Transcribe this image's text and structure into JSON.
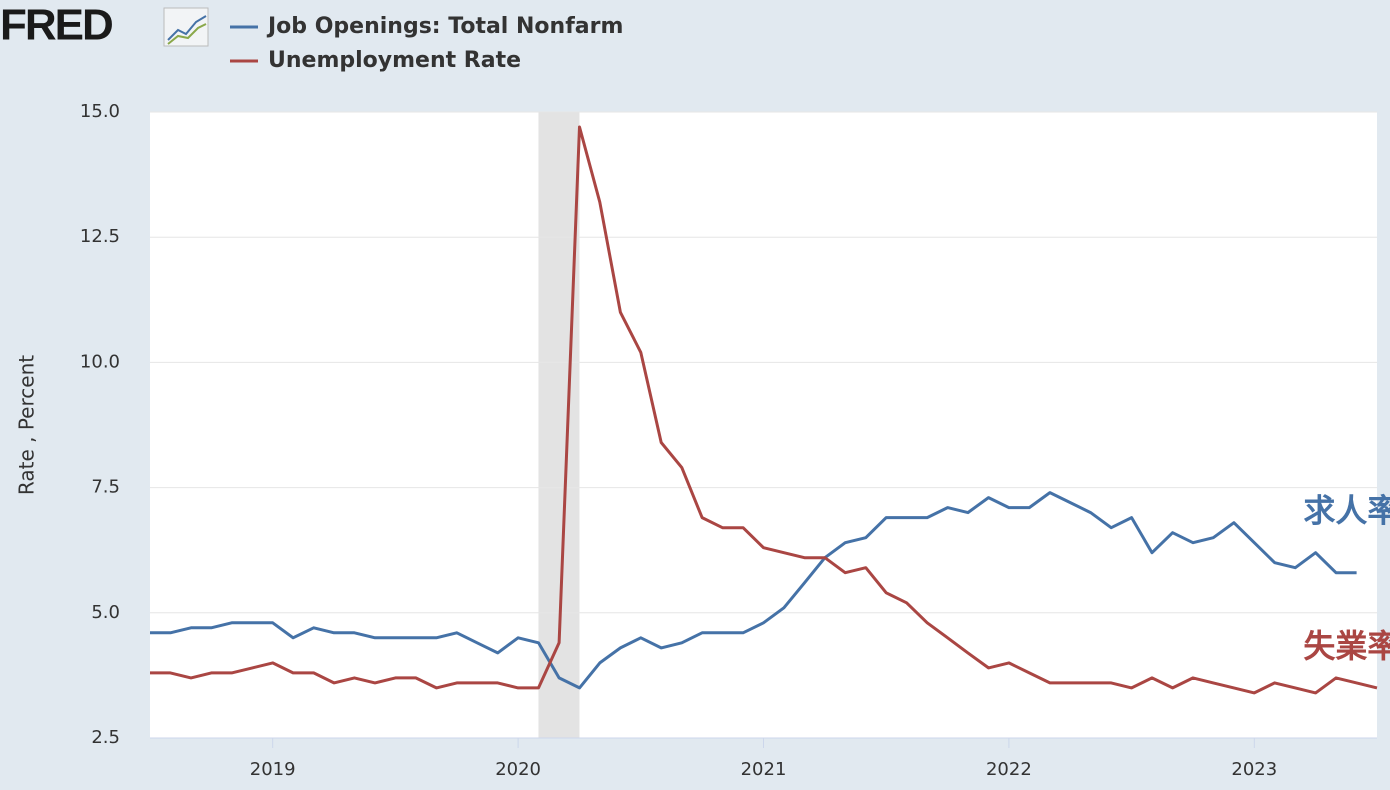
{
  "logo": "FRED",
  "chart_data": {
    "type": "line",
    "y_label": "Rate , Percent",
    "x": [
      2018.5,
      2018.583,
      2018.667,
      2018.75,
      2018.833,
      2018.917,
      2019,
      2019.083,
      2019.167,
      2019.25,
      2019.333,
      2019.417,
      2019.5,
      2019.583,
      2019.667,
      2019.75,
      2019.833,
      2019.917,
      2020,
      2020.083,
      2020.167,
      2020.25,
      2020.333,
      2020.417,
      2020.5,
      2020.583,
      2020.667,
      2020.75,
      2020.833,
      2020.917,
      2021,
      2021.083,
      2021.167,
      2021.25,
      2021.333,
      2021.417,
      2021.5,
      2021.583,
      2021.667,
      2021.75,
      2021.833,
      2021.917,
      2022,
      2022.083,
      2022.167,
      2022.25,
      2022.333,
      2022.417,
      2022.5,
      2022.583,
      2022.667,
      2022.75,
      2022.833,
      2022.917,
      2023,
      2023.083,
      2023.167,
      2023.25,
      2023.333,
      2023.417,
      2023.5
    ],
    "series": [
      {
        "name": "Job Openings: Total Nonfarm",
        "color": "#4572a7",
        "values": [
          4.6,
          4.6,
          4.7,
          4.7,
          4.8,
          4.8,
          4.8,
          4.5,
          4.7,
          4.6,
          4.6,
          4.5,
          4.5,
          4.5,
          4.5,
          4.6,
          4.4,
          4.2,
          4.5,
          4.4,
          3.7,
          3.5,
          4.0,
          4.3,
          4.5,
          4.3,
          4.4,
          4.6,
          4.6,
          4.6,
          4.8,
          5.1,
          5.6,
          6.1,
          6.4,
          6.5,
          6.9,
          6.9,
          6.9,
          7.1,
          7.0,
          7.3,
          7.1,
          7.1,
          7.4,
          7.2,
          7.0,
          6.7,
          6.9,
          6.2,
          6.6,
          6.4,
          6.5,
          6.8,
          6.4,
          6.0,
          5.9,
          6.2,
          5.8,
          5.8,
          null
        ]
      },
      {
        "name": "Unemployment Rate",
        "color": "#aa4643",
        "values": [
          3.8,
          3.8,
          3.7,
          3.8,
          3.8,
          3.9,
          4.0,
          3.8,
          3.8,
          3.6,
          3.7,
          3.6,
          3.7,
          3.7,
          3.5,
          3.6,
          3.6,
          3.6,
          3.5,
          3.5,
          4.4,
          14.7,
          13.2,
          11.0,
          10.2,
          8.4,
          7.9,
          6.9,
          6.7,
          6.7,
          6.3,
          6.2,
          6.1,
          6.1,
          5.8,
          5.9,
          5.4,
          5.2,
          4.8,
          4.5,
          4.2,
          3.9,
          4.0,
          3.8,
          3.6,
          3.6,
          3.6,
          3.6,
          3.5,
          3.7,
          3.5,
          3.7,
          3.6,
          3.5,
          3.4,
          3.6,
          3.5,
          3.4,
          3.7,
          3.6,
          3.5
        ]
      }
    ],
    "annotations": [
      {
        "text": "求人率",
        "x": 2023.2,
        "y": 7.0,
        "color": "#4572a7"
      },
      {
        "text": "失業率",
        "x": 2023.2,
        "y": 4.3,
        "color": "#aa4643"
      }
    ],
    "recessions": [
      [
        2020.083,
        2020.25
      ]
    ],
    "xlim": [
      2018.5,
      2023.5
    ],
    "xticks": [
      2019,
      2020,
      2021,
      2022,
      2023
    ],
    "ylim": [
      2.5,
      15
    ],
    "yticks": [
      2.5,
      {
        "value": 5,
        "label": "5.0"
      },
      7.5,
      {
        "value": 10,
        "label": "10.0"
      },
      12.5,
      {
        "value": 15,
        "label": "15.0"
      }
    ],
    "grid": true
  }
}
